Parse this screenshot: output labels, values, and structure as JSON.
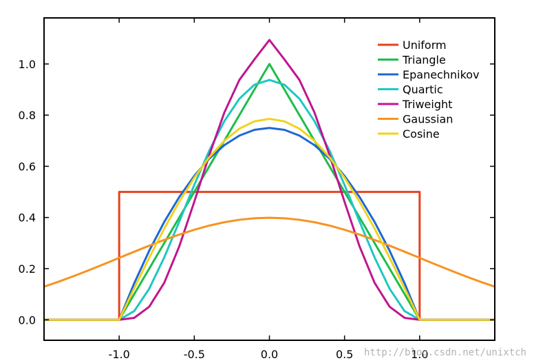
{
  "chart_data": {
    "type": "line",
    "title": "",
    "xlabel": "",
    "ylabel": "",
    "xlim": [
      -1.5,
      1.5
    ],
    "ylim": [
      -0.08,
      1.18
    ],
    "xticks": [
      -1.0,
      -0.5,
      0.0,
      0.5,
      1.0
    ],
    "xtick_labels": [
      "-1.0",
      "-0.5",
      "0.0",
      "0.5",
      "1.0"
    ],
    "yticks": [
      0.0,
      0.2,
      0.4,
      0.6,
      0.8,
      1.0
    ],
    "ytick_labels": [
      "0.0",
      "0.2",
      "0.4",
      "0.6",
      "0.8",
      "1.0"
    ],
    "grid": false,
    "legend_position": "top-right",
    "series": [
      {
        "name": "Uniform",
        "color": "#e8401b",
        "x": [
          -1.5,
          -1.0,
          -1.0,
          1.0,
          1.0,
          1.5
        ],
        "y": [
          0.0,
          0.0,
          0.5,
          0.5,
          0.0,
          0.0
        ]
      },
      {
        "name": "Triangle",
        "color": "#1dbd48",
        "x": [
          -1.5,
          -1.0,
          0.0,
          1.0,
          1.5
        ],
        "y": [
          0.0,
          0.0,
          1.0,
          0.0,
          0.0
        ]
      },
      {
        "name": "Epanechnikov",
        "color": "#1b68d6",
        "x": [
          -1.5,
          -1.0,
          -0.9,
          -0.8,
          -0.7,
          -0.6,
          -0.5,
          -0.4,
          -0.3,
          -0.2,
          -0.1,
          0.0,
          0.1,
          0.2,
          0.3,
          0.4,
          0.5,
          0.6,
          0.7,
          0.8,
          0.9,
          1.0,
          1.5
        ],
        "y": [
          0.0,
          0.0,
          0.1425,
          0.27,
          0.3825,
          0.48,
          0.5625,
          0.63,
          0.6825,
          0.72,
          0.7425,
          0.75,
          0.7425,
          0.72,
          0.6825,
          0.63,
          0.5625,
          0.48,
          0.3825,
          0.27,
          0.1425,
          0.0,
          0.0
        ]
      },
      {
        "name": "Quartic",
        "color": "#1ec7c3",
        "x": [
          -1.5,
          -1.0,
          -0.9,
          -0.8,
          -0.7,
          -0.6,
          -0.5,
          -0.4,
          -0.3,
          -0.2,
          -0.1,
          0.0,
          0.1,
          0.2,
          0.3,
          0.4,
          0.5,
          0.6,
          0.7,
          0.8,
          0.9,
          1.0,
          1.5
        ],
        "y": [
          0.0,
          0.0,
          0.0338,
          0.1215,
          0.2438,
          0.384,
          0.5273,
          0.6615,
          0.7763,
          0.864,
          0.9188,
          0.9375,
          0.9188,
          0.864,
          0.7763,
          0.6615,
          0.5273,
          0.384,
          0.2438,
          0.1215,
          0.0338,
          0.0,
          0.0
        ]
      },
      {
        "name": "Triweight",
        "color": "#c0158f",
        "x": [
          -1.5,
          -1.0,
          -0.9,
          -0.8,
          -0.7,
          -0.6,
          -0.5,
          -0.4,
          -0.3,
          -0.2,
          -0.1,
          0.0,
          0.1,
          0.2,
          0.3,
          0.4,
          0.5,
          0.6,
          0.7,
          0.8,
          0.9,
          1.0,
          1.5
        ],
        "y": [
          0.0,
          0.0,
          0.0075,
          0.051,
          0.1446,
          0.2868,
          0.4614,
          0.6443,
          0.8101,
          0.9375,
          1.0176,
          1.0938,
          1.0176,
          0.9375,
          0.8101,
          0.6443,
          0.4614,
          0.2868,
          0.1446,
          0.051,
          0.0075,
          0.0,
          0.0
        ]
      },
      {
        "name": "Gaussian",
        "color": "#f7931e",
        "x": [
          -1.5,
          -1.4,
          -1.3,
          -1.2,
          -1.1,
          -1.0,
          -0.9,
          -0.8,
          -0.7,
          -0.6,
          -0.5,
          -0.4,
          -0.3,
          -0.2,
          -0.1,
          0.0,
          0.1,
          0.2,
          0.3,
          0.4,
          0.5,
          0.6,
          0.7,
          0.8,
          0.9,
          1.0,
          1.1,
          1.2,
          1.3,
          1.4,
          1.5
        ],
        "y": [
          0.1295,
          0.1497,
          0.1714,
          0.1942,
          0.2179,
          0.242,
          0.2661,
          0.2897,
          0.3123,
          0.3332,
          0.3521,
          0.3683,
          0.3814,
          0.391,
          0.397,
          0.3989,
          0.397,
          0.391,
          0.3814,
          0.3683,
          0.3521,
          0.3332,
          0.3123,
          0.2897,
          0.2661,
          0.242,
          0.2179,
          0.1942,
          0.1714,
          0.1497,
          0.1295
        ]
      },
      {
        "name": "Cosine",
        "color": "#f2d21a",
        "x": [
          -1.5,
          -1.0,
          -0.9,
          -0.8,
          -0.7,
          -0.6,
          -0.5,
          -0.4,
          -0.3,
          -0.2,
          -0.1,
          0.0,
          0.1,
          0.2,
          0.3,
          0.4,
          0.5,
          0.6,
          0.7,
          0.8,
          0.9,
          1.0,
          1.5
        ],
        "y": [
          0.0,
          0.0,
          0.1229,
          0.2427,
          0.3566,
          0.4617,
          0.5554,
          0.6354,
          0.6998,
          0.747,
          0.7757,
          0.7854,
          0.7757,
          0.747,
          0.6998,
          0.6354,
          0.5554,
          0.4617,
          0.3566,
          0.2427,
          0.1229,
          0.0,
          0.0
        ]
      }
    ]
  },
  "watermark": "http://blog.csdn.net/unixtch"
}
